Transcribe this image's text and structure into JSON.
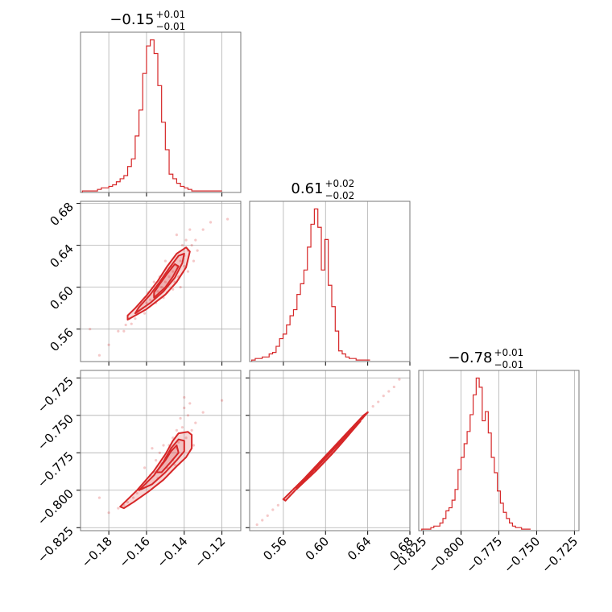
{
  "chart_data": {
    "type": "corner",
    "color": "#d62728",
    "panels": [
      {
        "kind": "histogram",
        "row": 0,
        "col": 0,
        "title": {
          "value": "−0.15",
          "plus": "+0.01",
          "minus": "−0.01"
        },
        "xlim": [
          -0.195,
          -0.11
        ],
        "x_start": -0.194,
        "bin_width": 0.002,
        "counts": [
          1,
          1,
          1,
          1,
          2,
          3,
          3,
          4,
          5,
          7,
          9,
          11,
          17,
          22,
          37,
          54,
          78,
          96,
          100,
          91,
          70,
          46,
          28,
          12,
          9,
          6,
          4,
          3,
          2,
          1,
          1,
          1,
          1,
          1,
          1,
          1,
          1
        ]
      },
      {
        "kind": "histogram",
        "row": 1,
        "col": 1,
        "title": {
          "value": "0.61",
          "plus": "+0.02",
          "minus": "−0.02"
        },
        "xlim": [
          0.528,
          0.68
        ],
        "x_start": 0.53,
        "bin_width": 0.0033,
        "counts": [
          1,
          2,
          2,
          3,
          3,
          5,
          6,
          10,
          15,
          18,
          24,
          30,
          34,
          44,
          51,
          60,
          75,
          90,
          100,
          88,
          60,
          80,
          50,
          36,
          20,
          7,
          5,
          3,
          2,
          2,
          1,
          1,
          1,
          1
        ]
      },
      {
        "kind": "histogram",
        "row": 2,
        "col": 2,
        "title": {
          "value": "−0.78",
          "plus": "+0.01",
          "minus": "−0.01"
        },
        "xlim": [
          -0.828,
          -0.722
        ],
        "x_start": -0.826,
        "bin_width": 0.002,
        "counts": [
          1,
          1,
          1,
          2,
          3,
          3,
          5,
          8,
          13,
          15,
          20,
          27,
          40,
          48,
          57,
          65,
          76,
          89,
          100,
          94,
          72,
          78,
          64,
          48,
          38,
          26,
          18,
          12,
          8,
          5,
          3,
          2,
          2,
          1,
          1,
          1
        ]
      },
      {
        "kind": "scatter",
        "row": 1,
        "col": 0,
        "xlim": [
          -0.195,
          -0.11
        ],
        "ylim": [
          0.529,
          0.682
        ],
        "points": [
          [
            -0.175,
            0.558
          ],
          [
            -0.171,
            0.564
          ],
          [
            -0.169,
            0.57
          ],
          [
            -0.165,
            0.575
          ],
          [
            -0.162,
            0.58
          ],
          [
            -0.16,
            0.585
          ],
          [
            -0.158,
            0.588
          ],
          [
            -0.156,
            0.592
          ],
          [
            -0.154,
            0.596
          ],
          [
            -0.152,
            0.6
          ],
          [
            -0.15,
            0.605
          ],
          [
            -0.148,
            0.61
          ],
          [
            -0.146,
            0.615
          ],
          [
            -0.144,
            0.62
          ],
          [
            -0.142,
            0.625
          ],
          [
            -0.14,
            0.63
          ],
          [
            -0.138,
            0.635
          ],
          [
            -0.136,
            0.64
          ],
          [
            -0.134,
            0.645
          ],
          [
            -0.13,
            0.655
          ],
          [
            -0.126,
            0.662
          ],
          [
            -0.117,
            0.665
          ],
          [
            -0.18,
            0.545
          ],
          [
            -0.185,
            0.535
          ],
          [
            -0.19,
            0.56
          ],
          [
            -0.153,
            0.61
          ],
          [
            -0.147,
            0.62
          ],
          [
            -0.145,
            0.605
          ],
          [
            -0.155,
            0.585
          ],
          [
            -0.159,
            0.595
          ],
          [
            -0.149,
            0.595
          ],
          [
            -0.143,
            0.61
          ],
          [
            -0.141,
            0.64
          ],
          [
            -0.139,
            0.645
          ],
          [
            -0.135,
            0.625
          ],
          [
            -0.161,
            0.575
          ],
          [
            -0.163,
            0.585
          ],
          [
            -0.166,
            0.57
          ],
          [
            -0.168,
            0.565
          ],
          [
            -0.172,
            0.558
          ],
          [
            -0.144,
            0.65
          ],
          [
            -0.137,
            0.655
          ],
          [
            -0.133,
            0.635
          ],
          [
            -0.142,
            0.6
          ],
          [
            -0.15,
            0.625
          ],
          [
            -0.156,
            0.605
          ],
          [
            -0.151,
            0.59
          ],
          [
            -0.146,
            0.598
          ],
          [
            -0.14,
            0.62
          ],
          [
            -0.138,
            0.615
          ]
        ],
        "contours": [
          [
            [
              -0.17,
              0.569
            ],
            [
              -0.16,
              0.579
            ],
            [
              -0.15,
              0.593
            ],
            [
              -0.144,
              0.605
            ],
            [
              -0.139,
              0.619
            ],
            [
              -0.137,
              0.634
            ],
            [
              -0.139,
              0.638
            ],
            [
              -0.144,
              0.632
            ],
            [
              -0.149,
              0.62
            ],
            [
              -0.154,
              0.606
            ],
            [
              -0.16,
              0.592
            ],
            [
              -0.166,
              0.58
            ],
            [
              -0.17,
              0.573
            ]
          ],
          [
            [
              -0.166,
              0.575
            ],
            [
              -0.158,
              0.585
            ],
            [
              -0.151,
              0.596
            ],
            [
              -0.145,
              0.609
            ],
            [
              -0.141,
              0.623
            ],
            [
              -0.14,
              0.632
            ],
            [
              -0.143,
              0.63
            ],
            [
              -0.148,
              0.618
            ],
            [
              -0.153,
              0.605
            ],
            [
              -0.158,
              0.593
            ],
            [
              -0.164,
              0.581
            ]
          ],
          [
            [
              -0.156,
              0.59
            ],
            [
              -0.15,
              0.6
            ],
            [
              -0.146,
              0.61
            ],
            [
              -0.143,
              0.62
            ],
            [
              -0.145,
              0.622
            ],
            [
              -0.149,
              0.613
            ],
            [
              -0.153,
              0.603
            ],
            [
              -0.156,
              0.595
            ]
          ]
        ]
      },
      {
        "kind": "scatter",
        "row": 2,
        "col": 0,
        "xlim": [
          -0.195,
          -0.11
        ],
        "ylim": [
          -0.827,
          -0.72
        ],
        "points": [
          [
            -0.175,
            -0.812
          ],
          [
            -0.17,
            -0.808
          ],
          [
            -0.165,
            -0.802
          ],
          [
            -0.16,
            -0.795
          ],
          [
            -0.156,
            -0.788
          ],
          [
            -0.152,
            -0.782
          ],
          [
            -0.15,
            -0.778
          ],
          [
            -0.148,
            -0.77
          ],
          [
            -0.146,
            -0.765
          ],
          [
            -0.144,
            -0.76
          ],
          [
            -0.142,
            -0.752
          ],
          [
            -0.14,
            -0.745
          ],
          [
            -0.138,
            -0.75
          ],
          [
            -0.136,
            -0.76
          ],
          [
            -0.134,
            -0.755
          ],
          [
            -0.13,
            -0.748
          ],
          [
            -0.12,
            -0.74
          ],
          [
            -0.18,
            -0.815
          ],
          [
            -0.185,
            -0.805
          ],
          [
            -0.155,
            -0.78
          ],
          [
            -0.153,
            -0.775
          ],
          [
            -0.147,
            -0.772
          ],
          [
            -0.145,
            -0.783
          ],
          [
            -0.158,
            -0.79
          ],
          [
            -0.162,
            -0.798
          ],
          [
            -0.143,
            -0.768
          ],
          [
            -0.141,
            -0.758
          ],
          [
            -0.149,
            -0.785
          ],
          [
            -0.151,
            -0.77
          ],
          [
            -0.139,
            -0.765
          ],
          [
            -0.167,
            -0.805
          ],
          [
            -0.172,
            -0.81
          ],
          [
            -0.154,
            -0.792
          ],
          [
            -0.146,
            -0.78
          ],
          [
            -0.144,
            -0.772
          ],
          [
            -0.135,
            -0.77
          ],
          [
            -0.137,
            -0.742
          ],
          [
            -0.14,
            -0.738
          ],
          [
            -0.157,
            -0.772
          ],
          [
            -0.161,
            -0.785
          ]
        ],
        "contours": [
          [
            [
              -0.174,
              -0.811
            ],
            [
              -0.165,
              -0.8
            ],
            [
              -0.156,
              -0.787
            ],
            [
              -0.15,
              -0.776
            ],
            [
              -0.146,
              -0.767
            ],
            [
              -0.143,
              -0.762
            ],
            [
              -0.138,
              -0.761
            ],
            [
              -0.136,
              -0.763
            ],
            [
              -0.136,
              -0.772
            ],
            [
              -0.139,
              -0.778
            ],
            [
              -0.144,
              -0.784
            ],
            [
              -0.151,
              -0.793
            ],
            [
              -0.159,
              -0.801
            ],
            [
              -0.167,
              -0.808
            ],
            [
              -0.172,
              -0.812
            ]
          ],
          [
            [
              -0.164,
              -0.8
            ],
            [
              -0.156,
              -0.79
            ],
            [
              -0.151,
              -0.781
            ],
            [
              -0.147,
              -0.772
            ],
            [
              -0.143,
              -0.766
            ],
            [
              -0.14,
              -0.767
            ],
            [
              -0.14,
              -0.774
            ],
            [
              -0.144,
              -0.78
            ],
            [
              -0.15,
              -0.788
            ],
            [
              -0.157,
              -0.796
            ]
          ],
          [
            [
              -0.155,
              -0.788
            ],
            [
              -0.15,
              -0.78
            ],
            [
              -0.147,
              -0.774
            ],
            [
              -0.144,
              -0.77
            ],
            [
              -0.143,
              -0.775
            ],
            [
              -0.147,
              -0.781
            ],
            [
              -0.152,
              -0.788
            ]
          ]
        ]
      },
      {
        "kind": "scatter",
        "row": 2,
        "col": 1,
        "xlim": [
          0.528,
          0.68
        ],
        "ylim": [
          -0.827,
          -0.72
        ],
        "points": [
          [
            0.545,
            -0.817
          ],
          [
            0.555,
            -0.81
          ],
          [
            0.565,
            -0.803
          ],
          [
            0.575,
            -0.796
          ],
          [
            0.585,
            -0.789
          ],
          [
            0.595,
            -0.781
          ],
          [
            0.605,
            -0.774
          ],
          [
            0.615,
            -0.767
          ],
          [
            0.625,
            -0.759
          ],
          [
            0.635,
            -0.752
          ],
          [
            0.645,
            -0.744
          ],
          [
            0.655,
            -0.737
          ],
          [
            0.665,
            -0.731
          ],
          [
            0.67,
            -0.726
          ],
          [
            0.55,
            -0.813
          ],
          [
            0.56,
            -0.806
          ],
          [
            0.57,
            -0.799
          ],
          [
            0.58,
            -0.793
          ],
          [
            0.59,
            -0.785
          ],
          [
            0.6,
            -0.778
          ],
          [
            0.61,
            -0.77
          ],
          [
            0.62,
            -0.763
          ],
          [
            0.63,
            -0.756
          ],
          [
            0.64,
            -0.748
          ],
          [
            0.65,
            -0.741
          ],
          [
            0.66,
            -0.734
          ],
          [
            0.54,
            -0.82
          ],
          [
            0.535,
            -0.823
          ],
          [
            0.612,
            -0.769
          ],
          [
            0.628,
            -0.757
          ]
        ],
        "contours": [
          [
            [
              0.56,
              -0.806
            ],
            [
              0.58,
              -0.792
            ],
            [
              0.6,
              -0.777
            ],
            [
              0.62,
              -0.762
            ],
            [
              0.636,
              -0.75
            ],
            [
              0.64,
              -0.748
            ],
            [
              0.635,
              -0.752
            ],
            [
              0.618,
              -0.765
            ],
            [
              0.598,
              -0.78
            ],
            [
              0.578,
              -0.795
            ],
            [
              0.562,
              -0.807
            ]
          ],
          [
            [
              0.572,
              -0.798
            ],
            [
              0.59,
              -0.785
            ],
            [
              0.61,
              -0.77
            ],
            [
              0.63,
              -0.755
            ],
            [
              0.633,
              -0.754
            ],
            [
              0.611,
              -0.772
            ],
            [
              0.591,
              -0.787
            ],
            [
              0.573,
              -0.799
            ]
          ],
          [
            [
              0.59,
              -0.786
            ],
            [
              0.605,
              -0.774
            ],
            [
              0.62,
              -0.763
            ],
            [
              0.622,
              -0.763
            ],
            [
              0.606,
              -0.776
            ],
            [
              0.591,
              -0.787
            ]
          ]
        ]
      }
    ],
    "col_ticks": [
      {
        "values": [
          -0.18,
          -0.16,
          -0.14,
          -0.12
        ],
        "labels": [
          "−0.18",
          "−0.16",
          "−0.14",
          "−0.12"
        ]
      },
      {
        "values": [
          0.56,
          0.6,
          0.64,
          0.68
        ],
        "labels": [
          "0.56",
          "0.60",
          "0.64",
          "0.68"
        ]
      },
      {
        "values": [
          -0.825,
          -0.8,
          -0.775,
          -0.75,
          -0.725
        ],
        "labels": [
          "−0.825",
          "−0.800",
          "−0.775",
          "−0.750",
          "−0.725"
        ]
      }
    ],
    "row_ticks": [
      null,
      {
        "values": [
          0.56,
          0.6,
          0.64,
          0.68
        ],
        "labels": [
          "0.56",
          "0.60",
          "0.64",
          "0.68"
        ]
      },
      {
        "values": [
          -0.825,
          -0.8,
          -0.775,
          -0.75,
          -0.725
        ],
        "labels": [
          "−0.825",
          "−0.800",
          "−0.775",
          "−0.750",
          "−0.725"
        ]
      }
    ]
  }
}
